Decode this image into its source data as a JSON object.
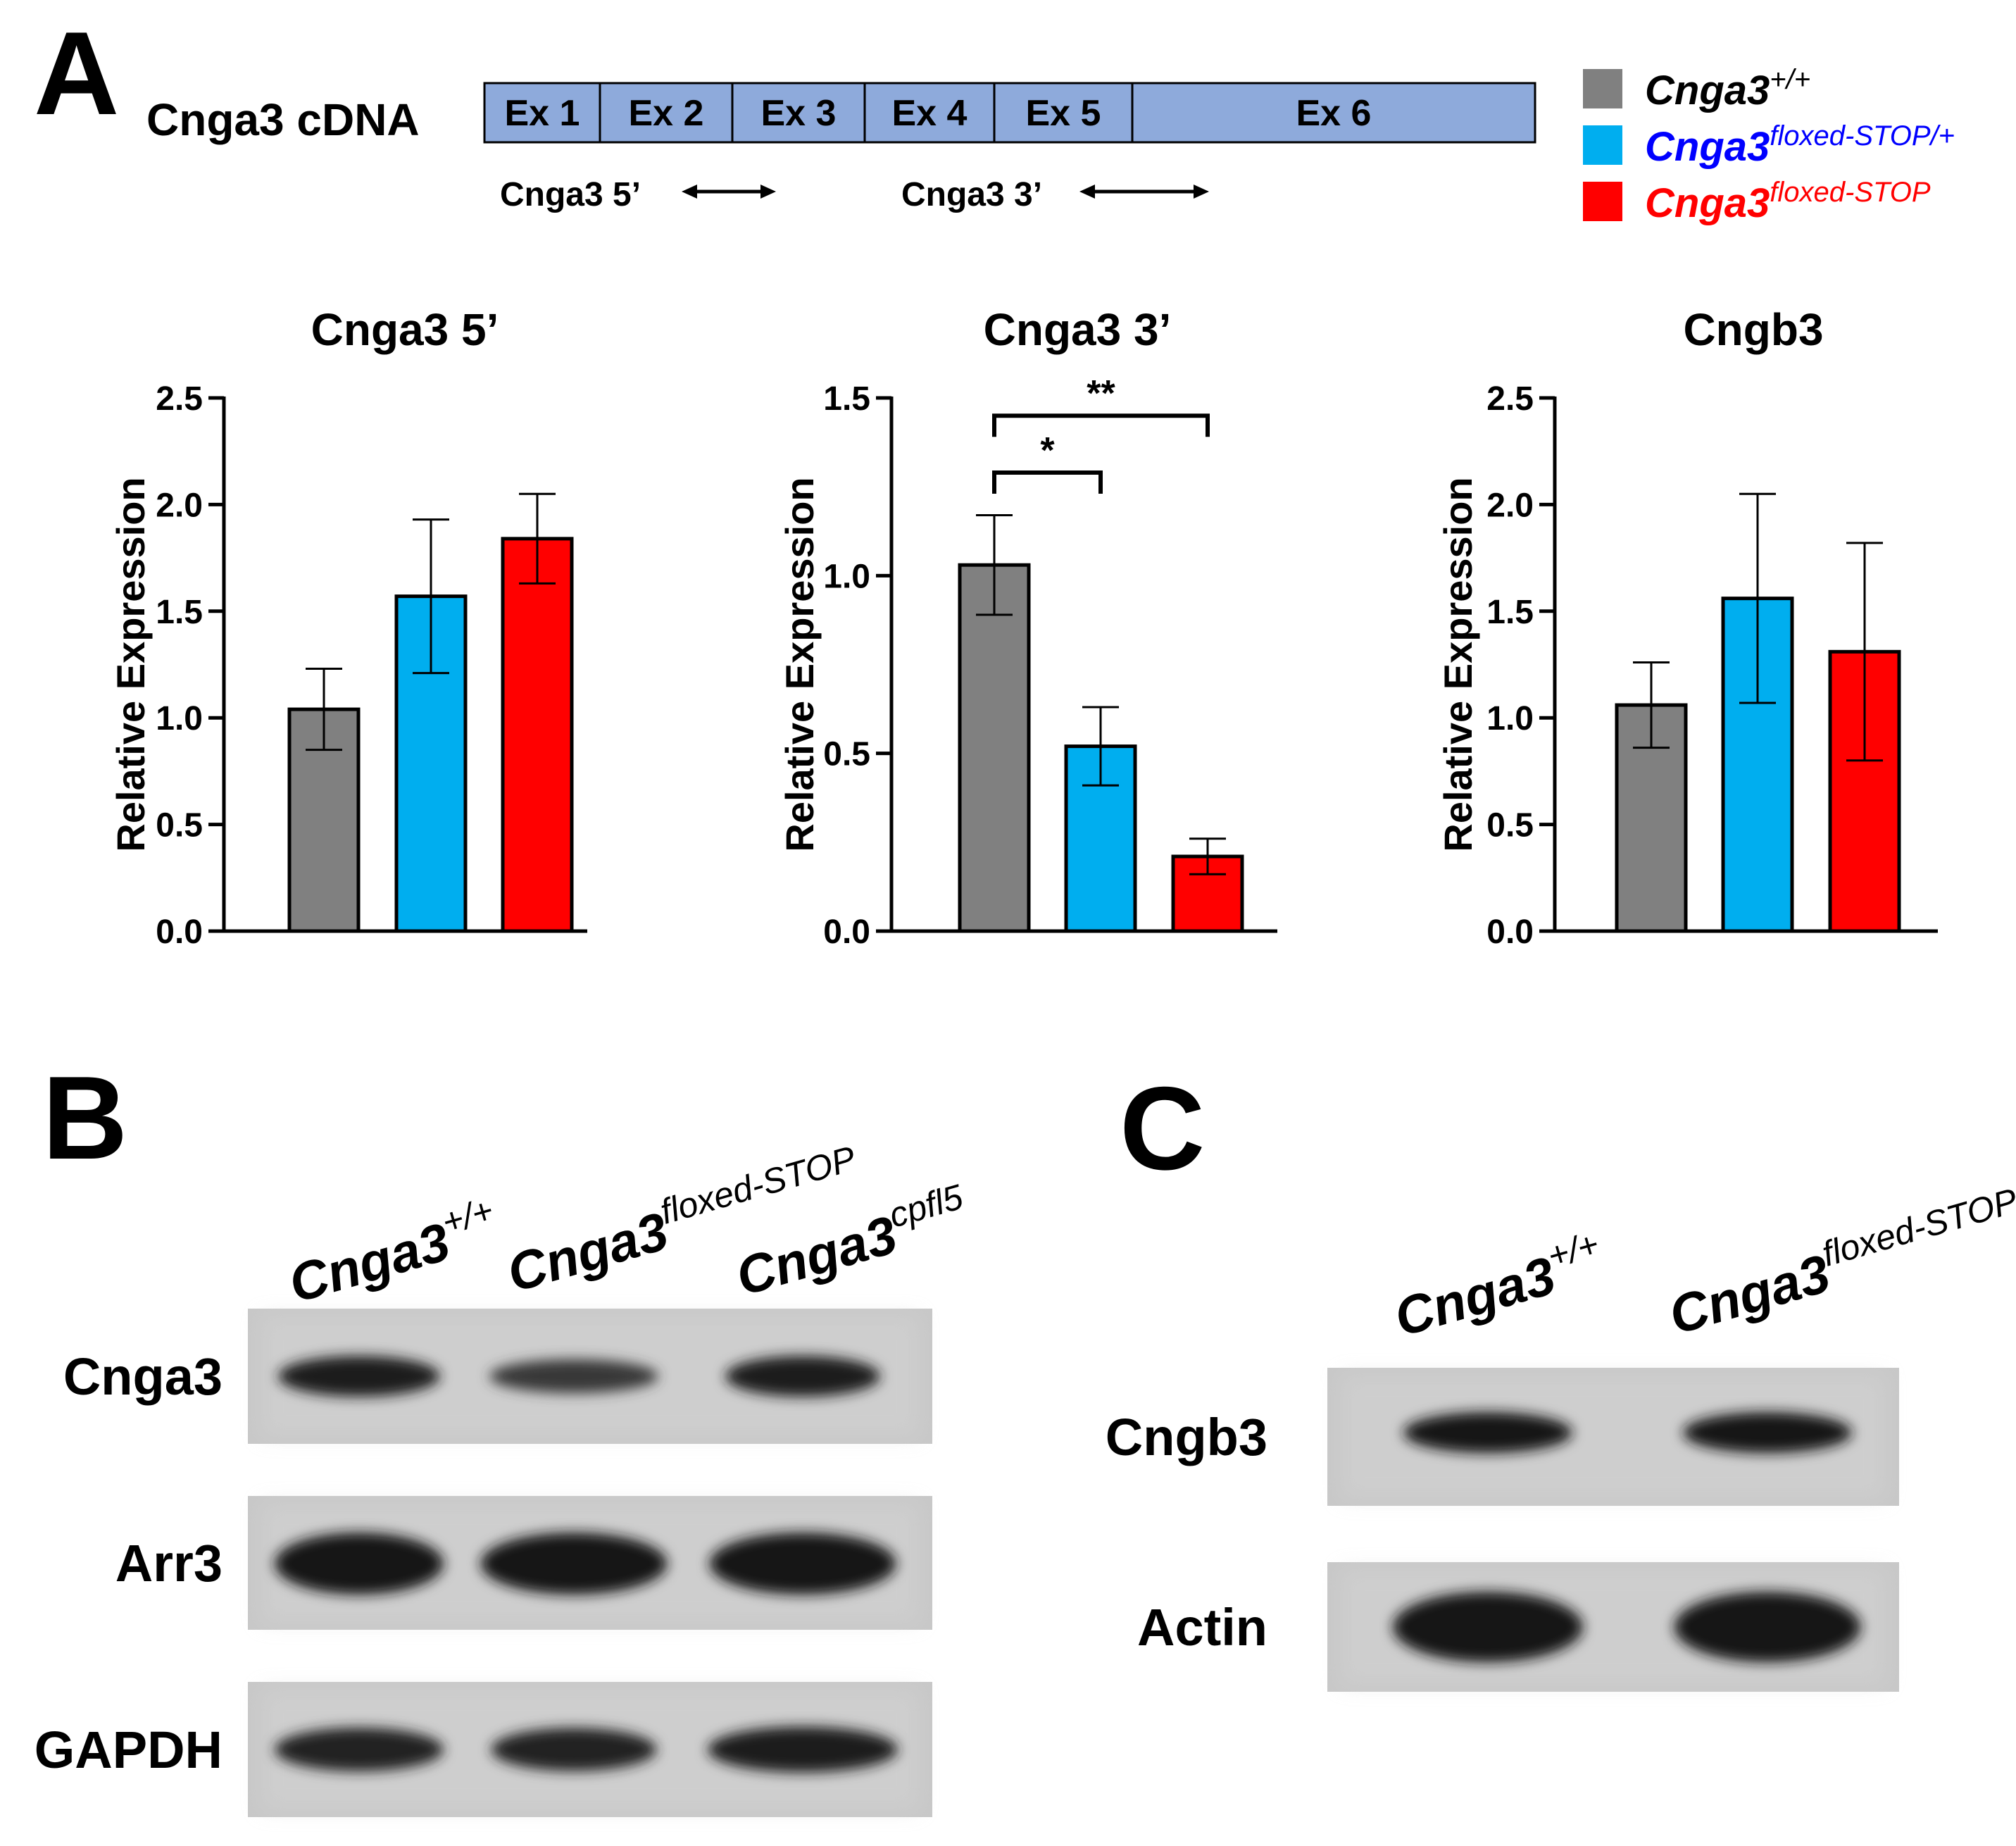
{
  "panel_labels": {
    "a": "A",
    "b": "B",
    "c": "C"
  },
  "colors": {
    "wt": "#808080",
    "het": "#00aeef",
    "hom": "#ff0000",
    "exon_fill": "#8eaadb",
    "blot_bg": "#c8c8c8"
  },
  "gene_map": {
    "label": "Cnga3 cDNA",
    "exons": [
      "Ex 1",
      "Ex 2",
      "Ex 3",
      "Ex 4",
      "Ex 5",
      "Ex 6"
    ],
    "primers": [
      "Cnga3 5’",
      "Cnga3 3’"
    ]
  },
  "legend": [
    {
      "base": "Cnga3",
      "sup": "+/+",
      "color": "#808080",
      "text_color": "#000000"
    },
    {
      "base": "Cnga3",
      "sup": "floxed-STOP/+",
      "color": "#00aeef",
      "text_color": "#0000ff"
    },
    {
      "base": "Cnga3",
      "sup": "floxed-STOP",
      "color": "#ff0000",
      "text_color": "#ff0000"
    }
  ],
  "chart_data": [
    {
      "type": "bar",
      "title": "Cnga3 5’",
      "ylabel": "Relative Expression",
      "xlabel": "",
      "ylim": [
        0,
        2.5
      ],
      "yticks": [
        "0.0",
        "0.5",
        "1.0",
        "1.5",
        "2.0",
        "2.5"
      ],
      "categories": [
        "Cnga3+/+",
        "Cnga3floxed-STOP/+",
        "Cnga3floxed-STOP"
      ],
      "values": [
        1.04,
        1.57,
        1.84
      ],
      "errors": [
        0.19,
        0.36,
        0.21
      ],
      "significance": []
    },
    {
      "type": "bar",
      "title": "Cnga3 3’",
      "ylabel": "Relative Expression",
      "xlabel": "",
      "ylim": [
        0,
        1.5
      ],
      "yticks": [
        "0.0",
        "0.5",
        "1.0",
        "1.5"
      ],
      "categories": [
        "Cnga3+/+",
        "Cnga3floxed-STOP/+",
        "Cnga3floxed-STOP"
      ],
      "values": [
        1.03,
        0.52,
        0.21
      ],
      "errors": [
        0.14,
        0.11,
        0.05
      ],
      "significance": [
        {
          "from": 0,
          "to": 1,
          "label": "*",
          "y": 1.29
        },
        {
          "from": 0,
          "to": 2,
          "label": "**",
          "y": 1.45
        }
      ]
    },
    {
      "type": "bar",
      "title": "Cngb3",
      "ylabel": "Relative Expression",
      "xlabel": "",
      "ylim": [
        0,
        2.5
      ],
      "yticks": [
        "0.0",
        "0.5",
        "1.0",
        "1.5",
        "2.0",
        "2.5"
      ],
      "categories": [
        "Cnga3+/+",
        "Cnga3floxed-STOP/+",
        "Cnga3floxed-STOP"
      ],
      "values": [
        1.06,
        1.56,
        1.31
      ],
      "errors": [
        0.2,
        0.49,
        0.51
      ],
      "significance": []
    }
  ],
  "blot_b": {
    "lanes": [
      {
        "base": "Cnga3",
        "sup": "+/+"
      },
      {
        "base": "Cnga3",
        "sup": "floxed-STOP"
      },
      {
        "base": "Cnga3",
        "sup": "cpfl5"
      }
    ],
    "rows": [
      {
        "label": "Cnga3",
        "intensity": [
          0.85,
          0.5,
          0.85
        ]
      },
      {
        "label": "Arr3",
        "intensity": [
          1.0,
          1.0,
          1.0
        ]
      },
      {
        "label": "GAPDH",
        "intensity": [
          0.8,
          0.78,
          0.9
        ]
      }
    ]
  },
  "blot_c": {
    "lanes": [
      {
        "base": "Cnga3",
        "sup": "+/+"
      },
      {
        "base": "Cnga3",
        "sup": "floxed-STOP"
      }
    ],
    "rows": [
      {
        "label": "Cngb3",
        "intensity": [
          1.0,
          1.0
        ]
      },
      {
        "label": "Actin",
        "intensity": [
          1.0,
          1.0
        ]
      }
    ]
  }
}
